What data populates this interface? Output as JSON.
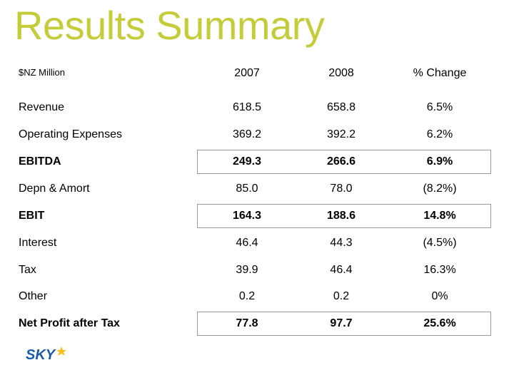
{
  "title": "Results Summary",
  "unit_label": "$NZ Million",
  "columns": [
    "2007",
    "2008",
    "% Change"
  ],
  "rows": [
    {
      "label": "Revenue",
      "v2007": "618.5",
      "v2008": "658.8",
      "change": "6.5%",
      "bold": false,
      "boxed": false
    },
    {
      "label": "Operating Expenses",
      "v2007": "369.2",
      "v2008": "392.2",
      "change": "6.2%",
      "bold": false,
      "boxed": false
    },
    {
      "label": "EBITDA",
      "v2007": "249.3",
      "v2008": "266.6",
      "change": "6.9%",
      "bold": true,
      "boxed": true
    },
    {
      "label": "Depn & Amort",
      "v2007": "85.0",
      "v2008": "78.0",
      "change": "(8.2%)",
      "bold": false,
      "boxed": false
    },
    {
      "label": "EBIT",
      "v2007": "164.3",
      "v2008": "188.6",
      "change": "14.8%",
      "bold": true,
      "boxed": true
    },
    {
      "label": "Interest",
      "v2007": "46.4",
      "v2008": "44.3",
      "change": "(4.5%)",
      "bold": false,
      "boxed": false
    },
    {
      "label": "Tax",
      "v2007": "39.9",
      "v2008": "46.4",
      "change": "16.3%",
      "bold": false,
      "boxed": false
    },
    {
      "label": "Other",
      "v2007": "0.2",
      "v2008": "0.2",
      "change": "0%",
      "bold": false,
      "boxed": false
    },
    {
      "label": "Net Profit after Tax",
      "v2007": "77.8",
      "v2008": "97.7",
      "change": "25.6%",
      "bold": true,
      "boxed": true
    }
  ],
  "logo": {
    "text": "SKY",
    "color": "#1a5aa8",
    "star_color": "#f2c21b"
  },
  "colors": {
    "title": "#c5cc3a",
    "box_border": "#9a9a9a"
  }
}
